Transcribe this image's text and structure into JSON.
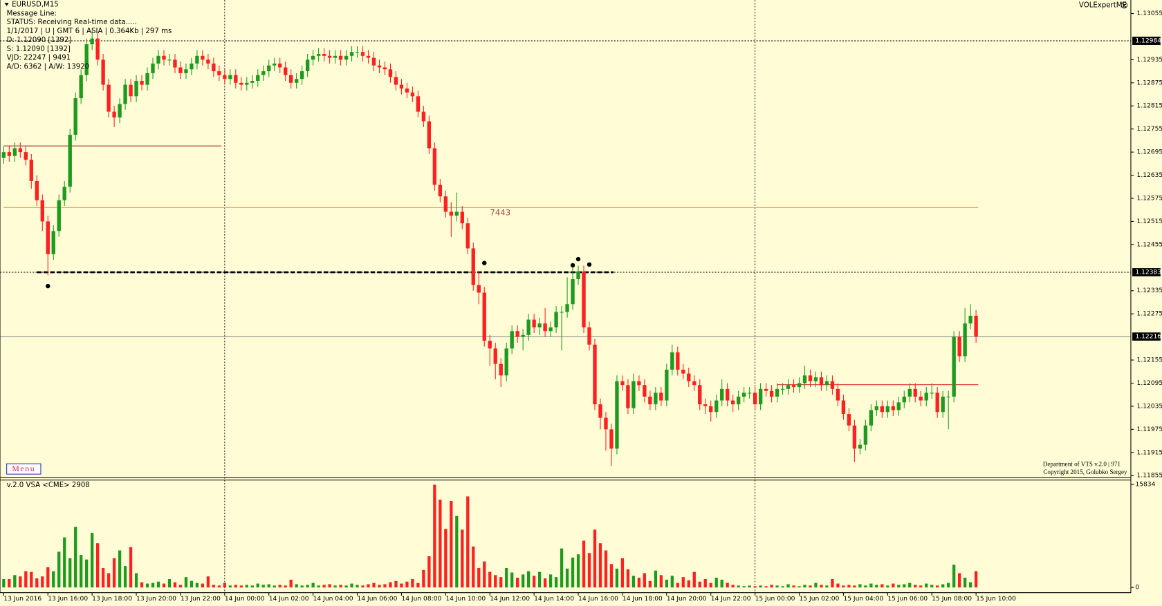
{
  "panel": {
    "symbol": "EURUSD,M15",
    "info": [
      "Message Line:",
      "STATUS:  Receiving Real-time data.....",
      "1/1/2017  |  U  | GMT 6  | ASIA | 0.364Kb | 297 ms",
      "D: 1.12090  [1392]",
      "S: 1.12090  [1392]",
      "VJD: 22247 | 9491",
      "A/D: 6362 | A/W: 13920"
    ],
    "expert": "VOLExpertME",
    "menu": "Menu",
    "footer": [
      "Department of VTS  v.2.0 | 971",
      "Copyright 2015, Golubko Sergey"
    ]
  },
  "chart_data": [
    {
      "type": "candlestick",
      "x": [
        "13 Jun 2016",
        null,
        null,
        null,
        null,
        null,
        null,
        null,
        "13 Jun 16:00",
        null,
        null,
        null,
        null,
        null,
        null,
        null,
        "13 Jun 18:00",
        null,
        null,
        null,
        null,
        null,
        null,
        null,
        "13 Jun 20:00",
        null,
        null,
        null,
        null,
        null,
        null,
        null,
        "13 Jun 22:00",
        null,
        null,
        null,
        null,
        null,
        null,
        null,
        "14 Jun 00:00",
        null,
        null,
        null,
        null,
        null,
        null,
        null,
        "14 Jun 02:00",
        null,
        null,
        null,
        null,
        null,
        null,
        null,
        "14 Jun 04:00",
        null,
        null,
        null,
        null,
        null,
        null,
        null,
        "14 Jun 06:00",
        null,
        null,
        null,
        null,
        null,
        null,
        null,
        "14 Jun 08:00",
        null,
        null,
        null,
        null,
        null,
        null,
        null,
        "14 Jun 10:00",
        null,
        null,
        null,
        null,
        null,
        null,
        null,
        "14 Jun 12:00",
        null,
        null,
        null,
        null,
        null,
        null,
        null,
        "14 Jun 14:00",
        null,
        null,
        null,
        null,
        null,
        null,
        null,
        "14 Jun 16:00",
        null,
        null,
        null,
        null,
        null,
        null,
        null,
        "14 Jun 18:00",
        null,
        null,
        null,
        null,
        null,
        null,
        null,
        "14 Jun 20:00",
        null,
        null,
        null,
        null,
        null,
        null,
        null,
        "14 Jun 22:00",
        null,
        null,
        null,
        null,
        null,
        null,
        null,
        "15 Jun 00:00",
        null,
        null,
        null,
        null,
        null,
        null,
        null,
        "15 Jun 02:00",
        null,
        null,
        null,
        null,
        null,
        null,
        null,
        "15 Jun 04:00",
        null,
        null,
        null,
        null,
        null,
        null,
        null,
        "15 Jun 06:00",
        null,
        null,
        null,
        null,
        null,
        null,
        null,
        "15 Jun 08:00",
        null,
        null,
        null,
        null,
        null,
        null,
        null,
        "15 Jun 10:00"
      ],
      "open": [
        1.1268,
        1.12695,
        1.12685,
        1.12705,
        1.12695,
        1.12675,
        1.1262,
        1.1257,
        1.12515,
        1.1243,
        1.1249,
        1.1257,
        1.12605,
        1.1274,
        1.12835,
        1.12895,
        1.12975,
        1.1299,
        1.12935,
        1.1287,
        1.128,
        1.12785,
        1.1282,
        1.1287,
        1.1284,
        1.1288,
        1.1287,
        1.129,
        1.12925,
        1.12945,
        1.12935,
        1.12935,
        1.12915,
        1.129,
        1.1291,
        1.12925,
        1.12945,
        1.12935,
        1.12925,
        1.12905,
        1.12895,
        1.12885,
        1.12895,
        1.12875,
        1.1287,
        1.12875,
        1.1288,
        1.12895,
        1.12905,
        1.1292,
        1.12925,
        1.12915,
        1.12895,
        1.12875,
        1.12885,
        1.12905,
        1.12935,
        1.12945,
        1.1295,
        1.12945,
        1.1294,
        1.12945,
        1.12935,
        1.12945,
        1.12955,
        1.12955,
        1.12945,
        1.1294,
        1.1292,
        1.12915,
        1.1291,
        1.1289,
        1.1287,
        1.1286,
        1.1285,
        1.1284,
        1.128,
        1.12775,
        1.12705,
        1.1261,
        1.1258,
        1.1254,
        1.1253,
        1.1254,
        1.1251,
        1.12445,
        1.1235,
        1.1233,
        1.12205,
        1.12185,
        1.12145,
        1.12115,
        1.12185,
        1.1223,
        1.12215,
        1.1222,
        1.1226,
        1.1224,
        1.1225,
        1.1223,
        1.1224,
        1.1228,
        1.1228,
        1.123,
        1.12365,
        1.12385,
        1.1224,
        1.12195,
        1.1204,
        1.12005,
        1.11975,
        1.11925,
        1.121,
        1.1209,
        1.1203,
        1.121,
        1.1209,
        1.1206,
        1.1204,
        1.1207,
        1.1205,
        1.1213,
        1.12175,
        1.1213,
        1.1212,
        1.121,
        1.1209,
        1.1204,
        1.12035,
        1.1202,
        1.1205,
        1.1208,
        1.1205,
        1.1204,
        1.1206,
        1.1207,
        1.1207,
        1.1204,
        1.1208,
        1.12075,
        1.1206,
        1.1208,
        1.1208,
        1.1209,
        1.12085,
        1.12095,
        1.12115,
        1.121,
        1.1211,
        1.1209,
        1.121,
        1.1208,
        1.1205,
        1.12015,
        1.11985,
        1.11925,
        1.11935,
        1.11985,
        1.12025,
        1.12035,
        1.1202,
        1.12035,
        1.12025,
        1.12045,
        1.1206,
        1.1208,
        1.1206,
        1.1205,
        1.1207,
        1.1207,
        1.1202,
        1.1206,
        1.1206,
        1.12215,
        1.12165,
        1.1225,
        1.1227
      ],
      "high": [
        1.1271,
        1.1271,
        1.1272,
        1.1272,
        1.1271,
        1.1269,
        1.12635,
        1.12585,
        1.1253,
        1.12505,
        1.12585,
        1.1262,
        1.12755,
        1.1285,
        1.1291,
        1.1299,
        1.1301,
        1.13005,
        1.1295,
        1.12885,
        1.12815,
        1.12835,
        1.12885,
        1.12885,
        1.12895,
        1.12895,
        1.12915,
        1.1294,
        1.1296,
        1.1296,
        1.1295,
        1.1295,
        1.1293,
        1.12925,
        1.1294,
        1.1296,
        1.1296,
        1.1295,
        1.1294,
        1.1292,
        1.1291,
        1.1291,
        1.1291,
        1.1289,
        1.1289,
        1.12895,
        1.1291,
        1.1292,
        1.12935,
        1.1294,
        1.1294,
        1.1293,
        1.1291,
        1.129,
        1.1292,
        1.1295,
        1.1296,
        1.12965,
        1.12965,
        1.1296,
        1.1296,
        1.1296,
        1.1296,
        1.1297,
        1.1297,
        1.1297,
        1.1296,
        1.12955,
        1.12935,
        1.1293,
        1.12925,
        1.12905,
        1.12885,
        1.12875,
        1.12865,
        1.12855,
        1.12815,
        1.1279,
        1.1272,
        1.12625,
        1.12595,
        1.12565,
        1.1259,
        1.12555,
        1.12525,
        1.1246,
        1.12385,
        1.12345,
        1.1222,
        1.122,
        1.1216,
        1.122,
        1.12245,
        1.12245,
        1.12235,
        1.12275,
        1.12275,
        1.12265,
        1.1229,
        1.12255,
        1.12295,
        1.12295,
        1.1237,
        1.12395,
        1.124,
        1.124,
        1.12255,
        1.1221,
        1.12055,
        1.1202,
        1.1199,
        1.12115,
        1.12115,
        1.12105,
        1.1212,
        1.12115,
        1.12105,
        1.12075,
        1.12085,
        1.12085,
        1.12145,
        1.12195,
        1.1219,
        1.12145,
        1.12135,
        1.12115,
        1.12105,
        1.12055,
        1.1205,
        1.12065,
        1.12105,
        1.12095,
        1.12065,
        1.12075,
        1.12085,
        1.12085,
        1.12085,
        1.12095,
        1.12095,
        1.1209,
        1.12095,
        1.12095,
        1.12105,
        1.12105,
        1.1211,
        1.1214,
        1.1213,
        1.12125,
        1.12125,
        1.12115,
        1.12115,
        1.12095,
        1.12065,
        1.1203,
        1.12,
        1.1195,
        1.12,
        1.1204,
        1.1205,
        1.1205,
        1.1205,
        1.1205,
        1.1206,
        1.12075,
        1.12095,
        1.12095,
        1.12075,
        1.12085,
        1.12095,
        1.12085,
        1.12075,
        1.12075,
        1.1223,
        1.1223,
        1.1229,
        1.123,
        1.12285
      ],
      "low": [
        1.12665,
        1.1267,
        1.1267,
        1.1268,
        1.1266,
        1.126,
        1.12555,
        1.1249,
        1.12375,
        1.12415,
        1.12475,
        1.12555,
        1.1259,
        1.12725,
        1.1282,
        1.1288,
        1.1296,
        1.1292,
        1.12855,
        1.12785,
        1.1276,
        1.1277,
        1.12805,
        1.12825,
        1.12825,
        1.12855,
        1.12855,
        1.12885,
        1.1291,
        1.1292,
        1.1292,
        1.129,
        1.12885,
        1.12885,
        1.12895,
        1.1291,
        1.1292,
        1.1291,
        1.1289,
        1.1288,
        1.1287,
        1.1287,
        1.1286,
        1.12855,
        1.12855,
        1.1286,
        1.12865,
        1.1288,
        1.1289,
        1.12905,
        1.129,
        1.1288,
        1.1286,
        1.1286,
        1.1287,
        1.1289,
        1.1292,
        1.1293,
        1.1293,
        1.12925,
        1.12925,
        1.1292,
        1.1292,
        1.1293,
        1.1294,
        1.1293,
        1.12925,
        1.12905,
        1.129,
        1.12895,
        1.12875,
        1.12855,
        1.12845,
        1.12835,
        1.12825,
        1.12785,
        1.1276,
        1.1269,
        1.12595,
        1.12565,
        1.12525,
        1.12475,
        1.12515,
        1.12495,
        1.1243,
        1.12335,
        1.123,
        1.1219,
        1.1214,
        1.12105,
        1.12085,
        1.121,
        1.1217,
        1.122,
        1.1218,
        1.12205,
        1.12225,
        1.1222,
        1.12215,
        1.12215,
        1.12225,
        1.1218,
        1.12265,
        1.12285,
        1.1235,
        1.12225,
        1.1218,
        1.12025,
        1.11975,
        1.1192,
        1.1188,
        1.1191,
        1.12075,
        1.12015,
        1.12015,
        1.12075,
        1.12045,
        1.12025,
        1.12025,
        1.12035,
        1.12035,
        1.12115,
        1.12115,
        1.12105,
        1.12085,
        1.12075,
        1.12025,
        1.12015,
        1.11995,
        1.12005,
        1.12035,
        1.12035,
        1.1202,
        1.12025,
        1.12045,
        1.12055,
        1.12025,
        1.12025,
        1.1206,
        1.12045,
        1.12045,
        1.12065,
        1.12065,
        1.1207,
        1.1207,
        1.1208,
        1.12085,
        1.12085,
        1.12075,
        1.12075,
        1.12065,
        1.12035,
        1.12,
        1.1197,
        1.1189,
        1.1191,
        1.1192,
        1.1197,
        1.1201,
        1.12005,
        1.12005,
        1.1201,
        1.1201,
        1.1203,
        1.12045,
        1.12045,
        1.12035,
        1.12035,
        1.12055,
        1.12005,
        1.12005,
        1.11975,
        1.12045,
        1.1215,
        1.1215,
        1.12235,
        1.122
      ],
      "close": [
        1.12695,
        1.12685,
        1.12705,
        1.12695,
        1.12675,
        1.1262,
        1.1257,
        1.12515,
        1.1243,
        1.1249,
        1.1257,
        1.12605,
        1.1274,
        1.12835,
        1.12895,
        1.12975,
        1.1299,
        1.12935,
        1.1287,
        1.128,
        1.12785,
        1.1282,
        1.1287,
        1.1284,
        1.1288,
        1.1287,
        1.129,
        1.12925,
        1.12945,
        1.12935,
        1.12935,
        1.12915,
        1.129,
        1.1291,
        1.12925,
        1.12945,
        1.12935,
        1.12925,
        1.12905,
        1.12895,
        1.12885,
        1.12895,
        1.12875,
        1.1287,
        1.12875,
        1.1288,
        1.12895,
        1.12905,
        1.1292,
        1.12925,
        1.12915,
        1.12895,
        1.12875,
        1.12885,
        1.12905,
        1.12935,
        1.12945,
        1.1295,
        1.12945,
        1.1294,
        1.12945,
        1.12935,
        1.12945,
        1.12955,
        1.12955,
        1.12945,
        1.1294,
        1.1292,
        1.12915,
        1.1291,
        1.1289,
        1.1287,
        1.1286,
        1.1285,
        1.1284,
        1.128,
        1.12775,
        1.12705,
        1.1261,
        1.1258,
        1.1254,
        1.1253,
        1.1254,
        1.1251,
        1.12445,
        1.1235,
        1.1233,
        1.12205,
        1.12185,
        1.12145,
        1.12115,
        1.12185,
        1.1223,
        1.12215,
        1.1222,
        1.1226,
        1.1224,
        1.1225,
        1.1223,
        1.1224,
        1.1228,
        1.1228,
        1.123,
        1.12365,
        1.12385,
        1.1224,
        1.12195,
        1.1204,
        1.12005,
        1.11975,
        1.11925,
        1.121,
        1.1209,
        1.1203,
        1.121,
        1.1209,
        1.1206,
        1.1204,
        1.1207,
        1.1205,
        1.1213,
        1.12175,
        1.1213,
        1.1212,
        1.121,
        1.1209,
        1.1204,
        1.12035,
        1.1202,
        1.1205,
        1.1208,
        1.1205,
        1.1204,
        1.1206,
        1.1207,
        1.1207,
        1.1204,
        1.1208,
        1.12075,
        1.1206,
        1.1208,
        1.1208,
        1.1209,
        1.12085,
        1.12095,
        1.12115,
        1.121,
        1.1211,
        1.1209,
        1.121,
        1.1208,
        1.1205,
        1.12015,
        1.11985,
        1.11925,
        1.11935,
        1.11985,
        1.12025,
        1.12035,
        1.1202,
        1.12035,
        1.12025,
        1.12045,
        1.1206,
        1.1208,
        1.1206,
        1.1205,
        1.1207,
        1.1207,
        1.1202,
        1.1206,
        1.1206,
        1.12215,
        1.12165,
        1.1225,
        1.1227,
        1.12216
      ],
      "up_color": "#1e9a1e",
      "down_color": "#ff2020",
      "ylim": [
        1.11851,
        1.1309
      ],
      "yticks": [
        1.13055,
        1.12935,
        1.12875,
        1.12815,
        1.12755,
        1.12695,
        1.12635,
        1.12575,
        1.12515,
        1.12455,
        1.12335,
        1.12275,
        1.12155,
        1.12095,
        1.12035,
        1.11975,
        1.11915,
        1.11855
      ],
      "price_labels": [
        1.12984,
        1.12383,
        1.12216
      ],
      "separators": [
        40,
        136
      ],
      "levels": [
        {
          "value": 1.12984,
          "color": "#000000",
          "dash": "dotted"
        },
        {
          "value": 1.12383,
          "color": "#000000",
          "dash": "dotted"
        },
        {
          "value": 1.12216,
          "color": "#8c8c8c",
          "dash": "solid"
        },
        {
          "value": 1.12551,
          "color": "#f0a400",
          "dash": "solid",
          "bars": [
            0,
            176
          ]
        },
        {
          "value": 1.12711,
          "color": "#a0302a",
          "dash": "solid",
          "bars": [
            0,
            39
          ]
        },
        {
          "value": 1.12091,
          "color": "#e03030",
          "dash": "solid",
          "bars": [
            140,
            176
          ]
        },
        {
          "value": 1.12383,
          "color": "#000000",
          "dash": "dashed",
          "bars": [
            6,
            110
          ]
        }
      ],
      "fractals": [
        {
          "bar": 8,
          "price": 1.12347
        },
        {
          "bar": 87,
          "price": 1.12407
        },
        {
          "bar": 103,
          "price": 1.12401
        },
        {
          "bar": 104,
          "price": 1.12417
        },
        {
          "bar": 106,
          "price": 1.12403
        }
      ],
      "annotation": {
        "text": "7443",
        "bar": 88,
        "price": 1.12537,
        "color": "#a05050"
      }
    },
    {
      "type": "bar",
      "title": "v.2.0 VSA <CME> 2908",
      "values": [
        1300,
        1300,
        1900,
        1700,
        2500,
        2400,
        1400,
        1700,
        3100,
        2500,
        5500,
        7700,
        4500,
        9300,
        5000,
        4300,
        8400,
        6800,
        3000,
        2200,
        4500,
        5700,
        3300,
        6200,
        2200,
        800,
        600,
        700,
        900,
        600,
        1300,
        800,
        400,
        1600,
        1000,
        700,
        600,
        1700,
        400,
        300,
        700,
        300,
        400,
        300,
        400,
        300,
        600,
        400,
        500,
        300,
        400,
        300,
        1200,
        500,
        300,
        400,
        700,
        300,
        400,
        500,
        300,
        400,
        300,
        600,
        400,
        300,
        500,
        700,
        400,
        500,
        800,
        1000,
        600,
        900,
        1300,
        700,
        2700,
        4800,
        15800,
        13500,
        9000,
        13300,
        11000,
        8900,
        14000,
        6300,
        3000,
        4000,
        2400,
        1900,
        1600,
        3000,
        2300,
        1500,
        2000,
        2500,
        1800,
        2400,
        1400,
        2000,
        1600,
        6000,
        2900,
        4600,
        5100,
        7200,
        5300,
        8900,
        6800,
        5700,
        3600,
        2900,
        4500,
        2800,
        1800,
        1500,
        2200,
        1000,
        2600,
        1900,
        1200,
        1800,
        700,
        1600,
        1100,
        2400,
        900,
        1300,
        700,
        1500,
        1200,
        700,
        400,
        300,
        200,
        300,
        200,
        300,
        200,
        400,
        300,
        200,
        500,
        300,
        200,
        400,
        300,
        700,
        400,
        300,
        1300,
        600,
        300,
        400,
        300,
        500,
        300,
        600,
        400,
        500,
        300,
        600,
        400,
        500,
        700,
        400,
        300,
        600,
        400,
        300,
        500,
        700,
        3500,
        2200,
        1500,
        800,
        2500
      ],
      "ylim": [
        0,
        15834
      ],
      "yticks": [
        0,
        15834
      ]
    }
  ]
}
